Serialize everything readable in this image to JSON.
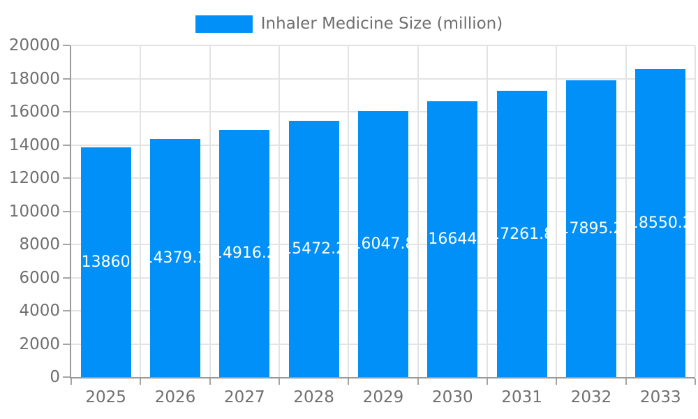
{
  "legend": {
    "label": "Inhaler Medicine Size (million)",
    "swatch_color": "#0090f8"
  },
  "chart_data": {
    "type": "bar",
    "title": "Inhaler Medicine Size (million)",
    "categories": [
      "2025",
      "2026",
      "2027",
      "2028",
      "2029",
      "2030",
      "2031",
      "2032",
      "2033"
    ],
    "values": [
      13860,
      14379.1,
      14916.2,
      15472.2,
      16047.8,
      16644,
      17261.8,
      17895.2,
      18550.2
    ],
    "bar_labels": [
      "13860",
      "14379.1",
      "14916.2",
      "15472.2",
      "16047.8",
      "16644",
      "17261.8",
      "17895.2",
      "18550.2"
    ],
    "xlabel": "",
    "ylabel": "",
    "ylim": [
      0,
      20000
    ],
    "ytick_step": 2000,
    "ytick_labels": [
      "0",
      "2000",
      "4000",
      "6000",
      "8000",
      "10000",
      "12000",
      "14000",
      "16000",
      "18000",
      "20000"
    ],
    "grid": true,
    "legend_position": "top",
    "bar_color": "#0090f8",
    "value_label_color": "#ffffff",
    "axis_text_color": "#6f6f6f",
    "gridline_color": "#e3e3e3",
    "axis_line_color": "#9a9a9a"
  }
}
